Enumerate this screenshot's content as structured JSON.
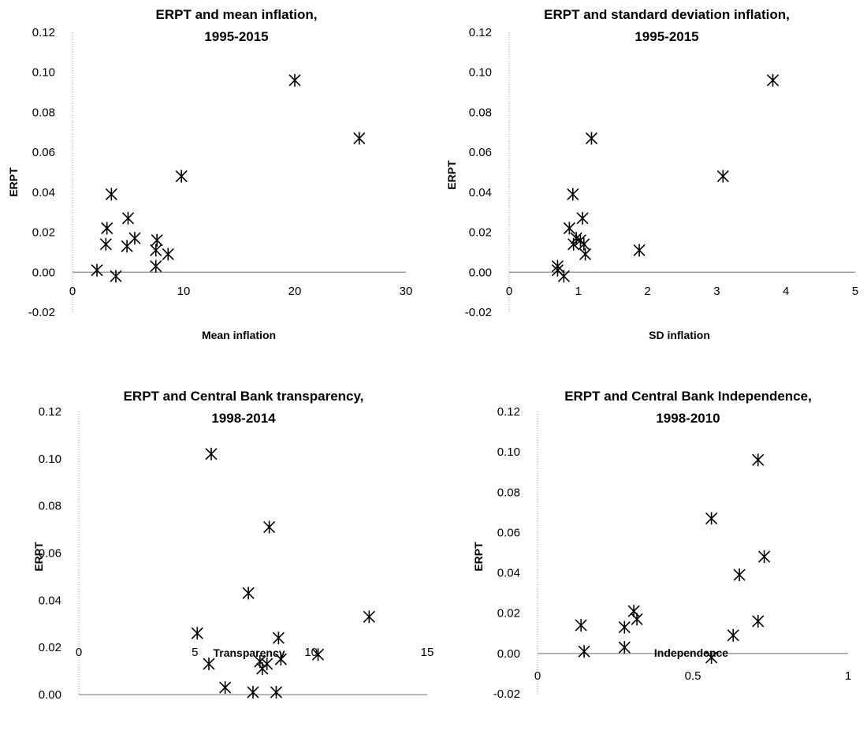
{
  "chart_data": [
    {
      "type": "scatter",
      "title_lines": [
        "ERPT and mean inflation,",
        "1995-2015"
      ],
      "xlabel": "Mean inflation",
      "ylabel": "ERPT",
      "xlim": [
        0,
        30
      ],
      "ylim": [
        -0.02,
        0.12
      ],
      "x_ticks": [
        "0",
        "10",
        "20",
        "30"
      ],
      "y_ticks": [
        "-0.02",
        "0.00",
        "0.02",
        "0.04",
        "0.06",
        "0.08",
        "0.10",
        "0.12"
      ],
      "marker": "asterisk",
      "points": [
        {
          "x": 2.2,
          "y": 0.001
        },
        {
          "x": 3.0,
          "y": 0.014
        },
        {
          "x": 3.1,
          "y": 0.022
        },
        {
          "x": 3.5,
          "y": 0.039
        },
        {
          "x": 3.9,
          "y": -0.002
        },
        {
          "x": 4.9,
          "y": 0.013
        },
        {
          "x": 5.0,
          "y": 0.027
        },
        {
          "x": 5.6,
          "y": 0.017
        },
        {
          "x": 7.5,
          "y": 0.003
        },
        {
          "x": 7.5,
          "y": 0.011
        },
        {
          "x": 7.6,
          "y": 0.016
        },
        {
          "x": 8.6,
          "y": 0.009
        },
        {
          "x": 9.8,
          "y": 0.048
        },
        {
          "x": 20.0,
          "y": 0.096
        },
        {
          "x": 25.8,
          "y": 0.067
        }
      ]
    },
    {
      "type": "scatter",
      "title_lines": [
        "ERPT and standard deviation  inflation,",
        "1995-2015"
      ],
      "xlabel": "SD inflation",
      "ylabel": "ERPT",
      "xlim": [
        0,
        5
      ],
      "ylim": [
        -0.02,
        0.12
      ],
      "x_ticks": [
        "0",
        "1",
        "2",
        "3",
        "4",
        "5"
      ],
      "y_ticks": [
        "-0.02",
        "0.00",
        "0.02",
        "0.04",
        "0.06",
        "0.08",
        "0.10",
        "0.12"
      ],
      "marker": "asterisk",
      "points": [
        {
          "x": 0.7,
          "y": 0.003
        },
        {
          "x": 0.7,
          "y": 0.001
        },
        {
          "x": 0.79,
          "y": -0.002
        },
        {
          "x": 0.87,
          "y": 0.022
        },
        {
          "x": 0.92,
          "y": 0.039
        },
        {
          "x": 0.93,
          "y": 0.014
        },
        {
          "x": 0.97,
          "y": 0.017
        },
        {
          "x": 1.03,
          "y": 0.016
        },
        {
          "x": 1.06,
          "y": 0.027
        },
        {
          "x": 1.08,
          "y": 0.014
        },
        {
          "x": 1.1,
          "y": 0.009
        },
        {
          "x": 1.19,
          "y": 0.067
        },
        {
          "x": 1.88,
          "y": 0.011
        },
        {
          "x": 3.09,
          "y": 0.048
        },
        {
          "x": 3.81,
          "y": 0.096
        }
      ]
    },
    {
      "type": "scatter",
      "title_lines": [
        "ERPT and Central Bank transparency,",
        "1998-2014"
      ],
      "xlabel": "Transparency",
      "ylabel": "ERPT",
      "xlim": [
        0,
        15
      ],
      "ylim": [
        0,
        0.12
      ],
      "x_ticks": [
        "0",
        "5",
        "10",
        "15"
      ],
      "y_ticks": [
        "0.00",
        "0.02",
        "0.04",
        "0.06",
        "0.08",
        "0.10",
        "0.12"
      ],
      "marker": "asterisk",
      "points": [
        {
          "x": 5.1,
          "y": 0.026
        },
        {
          "x": 5.6,
          "y": 0.013
        },
        {
          "x": 5.7,
          "y": 0.102
        },
        {
          "x": 6.3,
          "y": 0.003
        },
        {
          "x": 7.3,
          "y": 0.043
        },
        {
          "x": 7.5,
          "y": 0.001
        },
        {
          "x": 7.8,
          "y": 0.014
        },
        {
          "x": 7.9,
          "y": 0.011
        },
        {
          "x": 8.1,
          "y": 0.013
        },
        {
          "x": 8.2,
          "y": 0.071
        },
        {
          "x": 8.5,
          "y": 0.001
        },
        {
          "x": 8.6,
          "y": 0.024
        },
        {
          "x": 8.7,
          "y": 0.015
        },
        {
          "x": 10.3,
          "y": 0.017
        },
        {
          "x": 12.5,
          "y": 0.033
        }
      ]
    },
    {
      "type": "scatter",
      "title_lines": [
        "ERPT and Central Bank Independence,",
        "1998-2010"
      ],
      "xlabel": "Independence",
      "ylabel": "ERPT",
      "xlim": [
        0,
        1
      ],
      "ylim": [
        -0.02,
        0.12
      ],
      "x_ticks": [
        "0",
        "0.5",
        "1"
      ],
      "y_ticks": [
        "-0.02",
        "0.00",
        "0.02",
        "0.04",
        "0.06",
        "0.08",
        "0.10",
        "0.12"
      ],
      "marker": "asterisk",
      "points": [
        {
          "x": 0.14,
          "y": 0.014
        },
        {
          "x": 0.15,
          "y": 0.001
        },
        {
          "x": 0.28,
          "y": 0.013
        },
        {
          "x": 0.28,
          "y": 0.003
        },
        {
          "x": 0.31,
          "y": 0.021
        },
        {
          "x": 0.32,
          "y": 0.017
        },
        {
          "x": 0.56,
          "y": 0.067
        },
        {
          "x": 0.56,
          "y": -0.002
        },
        {
          "x": 0.63,
          "y": 0.009
        },
        {
          "x": 0.65,
          "y": 0.039
        },
        {
          "x": 0.71,
          "y": 0.096
        },
        {
          "x": 0.71,
          "y": 0.016
        },
        {
          "x": 0.73,
          "y": 0.048
        }
      ]
    }
  ]
}
